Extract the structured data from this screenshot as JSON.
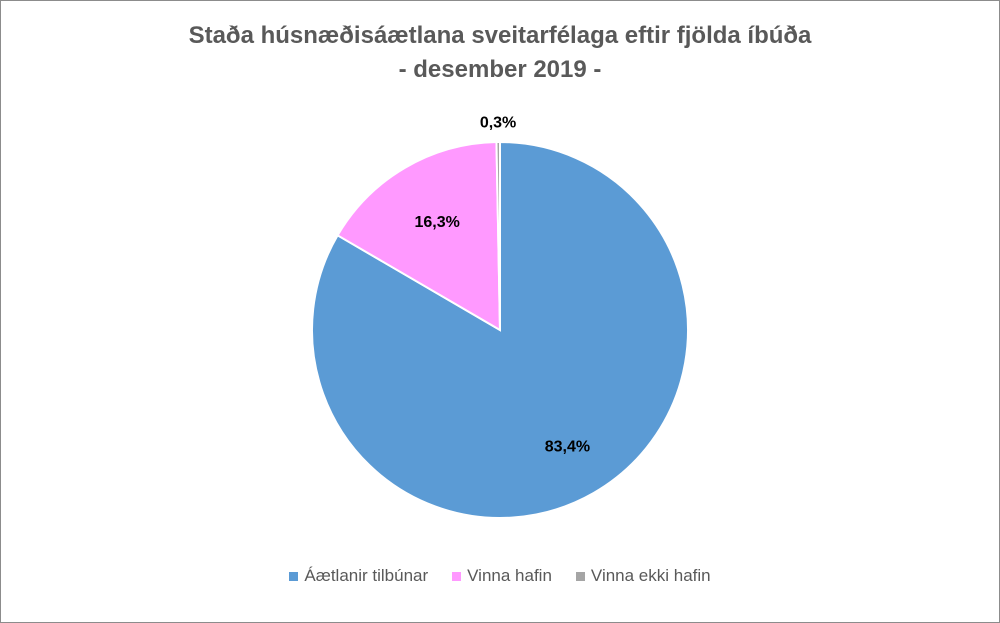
{
  "chart_data": {
    "type": "pie",
    "title": "Staða húsnæðisáætlana sveitarfélaga eftir fjölda íbúða",
    "subtitle": "- desember 2019 -",
    "slices": [
      {
        "name": "Áætlanir tilbúnar",
        "value": 83.4,
        "label": "83,4%",
        "color": "#5b9bd5"
      },
      {
        "name": "Vinna hafin",
        "value": 16.3,
        "label": "16,3%",
        "color": "#ff99ff"
      },
      {
        "name": "Vinna ekki hafin",
        "value": 0.3,
        "label": "0,3%",
        "color": "#a5a5a5"
      }
    ],
    "legend_position": "bottom"
  }
}
